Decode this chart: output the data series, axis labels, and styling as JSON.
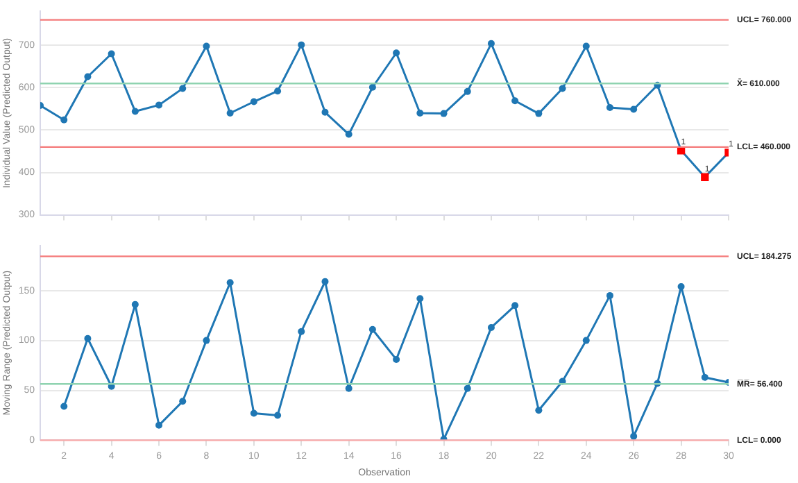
{
  "chart_data": [
    {
      "type": "line",
      "ylabel": "Individual Value (Predicted Output)",
      "xlim": [
        1,
        30
      ],
      "xticks": [
        2,
        4,
        6,
        8,
        10,
        12,
        14,
        16,
        18,
        20,
        22,
        24,
        26,
        28,
        30
      ],
      "ylim": [
        300,
        780
      ],
      "yticks": [
        300,
        400,
        500,
        600,
        700
      ],
      "grid": "y",
      "legend": false,
      "tick_labels": "y",
      "marker": "circle",
      "series": [
        {
          "type": "line",
          "color": "#1f77b4",
          "x": [
            1,
            2,
            3,
            4,
            5,
            6,
            7,
            8,
            9,
            10,
            11,
            12,
            13,
            14,
            15,
            16,
            17,
            18,
            19,
            20,
            21,
            22,
            23,
            24,
            25,
            26,
            27,
            28,
            29,
            30
          ],
          "values": [
            558,
            524,
            626,
            680,
            544,
            559,
            598,
            698,
            540,
            567,
            592,
            701,
            542,
            490,
            601,
            682,
            540,
            539,
            591,
            704,
            569,
            539,
            598,
            698,
            553,
            549,
            606,
            452,
            389,
            447
          ]
        },
        {
          "type": "scatter",
          "marker": "square",
          "color": "#ff0000",
          "x": [
            28,
            29,
            30
          ],
          "values": [
            452,
            389,
            447
          ]
        }
      ],
      "annotations": [
        {
          "text": "1",
          "x": 28,
          "y": 452
        },
        {
          "text": "1",
          "x": 29,
          "y": 389
        },
        {
          "text": "1",
          "x": 30,
          "y": 447
        }
      ],
      "ref_lines": [
        {
          "axis": "y",
          "value": 760,
          "label": "UCL= 760.000",
          "color": "#f47a7a"
        },
        {
          "axis": "y",
          "value": 610,
          "label": "X̄= 610.000",
          "color": "#8fd3b0"
        },
        {
          "axis": "y",
          "value": 460,
          "label": "LCL= 460.000",
          "color": "#f47a7a"
        }
      ]
    },
    {
      "type": "line",
      "ylabel": "Moving Range (Predicted Output)",
      "xlabel": "Observation",
      "xlim": [
        1,
        30
      ],
      "xticks": [
        2,
        4,
        6,
        8,
        10,
        12,
        14,
        16,
        18,
        20,
        22,
        24,
        26,
        28,
        30
      ],
      "ylim": [
        0,
        195
      ],
      "yticks": [
        0,
        50,
        100,
        150
      ],
      "grid": "y",
      "legend": false,
      "marker": "circle",
      "series": [
        {
          "type": "line",
          "color": "#1f77b4",
          "x": [
            2,
            3,
            4,
            5,
            6,
            7,
            8,
            9,
            10,
            11,
            12,
            13,
            14,
            15,
            16,
            17,
            18,
            19,
            20,
            21,
            22,
            23,
            24,
            25,
            26,
            27,
            28,
            29,
            30
          ],
          "values": [
            34,
            102,
            54,
            136,
            15,
            39,
            100,
            158,
            27,
            25,
            109,
            159,
            52,
            111,
            81,
            142,
            1,
            52,
            113,
            135,
            30,
            59,
            100,
            145,
            4,
            57,
            154,
            63,
            58
          ]
        }
      ],
      "ref_lines": [
        {
          "axis": "y",
          "value": 184.275,
          "label": "UCL= 184.275",
          "color": "#f47a7a"
        },
        {
          "axis": "y",
          "value": 56.4,
          "label": "M̅R̅= 56.400",
          "color": "#8fd3b0"
        },
        {
          "axis": "y",
          "value": 0,
          "label": "LCL= 0.000",
          "color": "#f7a8a8"
        }
      ]
    }
  ]
}
